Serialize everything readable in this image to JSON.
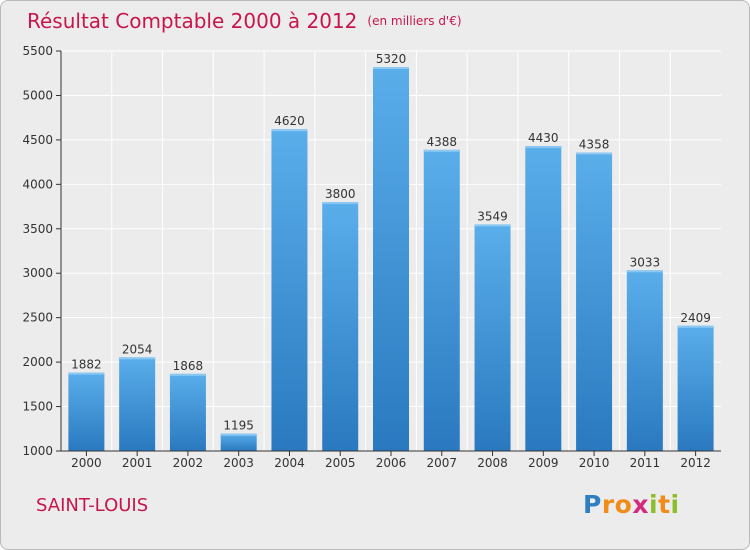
{
  "chart_data": {
    "type": "bar",
    "title": "Résultat Comptable 2000 à 2012",
    "unit_label": "(en milliers d'€)",
    "categories": [
      "2000",
      "2001",
      "2002",
      "2003",
      "2004",
      "2005",
      "2006",
      "2007",
      "2008",
      "2009",
      "2010",
      "2011",
      "2012"
    ],
    "values": [
      1882,
      2054,
      1868,
      1195,
      4620,
      3800,
      5320,
      4388,
      3549,
      4430,
      4358,
      3033,
      2409
    ],
    "ylim": [
      1000,
      5500
    ],
    "yticks": [
      1000,
      1500,
      2000,
      2500,
      3000,
      3500,
      4000,
      4500,
      5000,
      5500
    ],
    "xlabel": "",
    "ylabel": "",
    "grid": true
  },
  "footer": {
    "city": "SAINT-LOUIS",
    "brand_letters": [
      "P",
      "r",
      "o",
      "x",
      "i",
      "t",
      "i"
    ],
    "brand_colors": [
      "#2e7fc1",
      "#f08c1a",
      "#f08c1a",
      "#d42a7f",
      "#8bbf2a",
      "#f08c1a",
      "#8bbf2a"
    ]
  },
  "colors": {
    "title": "#c8154d",
    "bar_top": "#5aaeea",
    "bar_bottom": "#2a79c0",
    "axis": "#333333",
    "grid": "#ffffff"
  }
}
